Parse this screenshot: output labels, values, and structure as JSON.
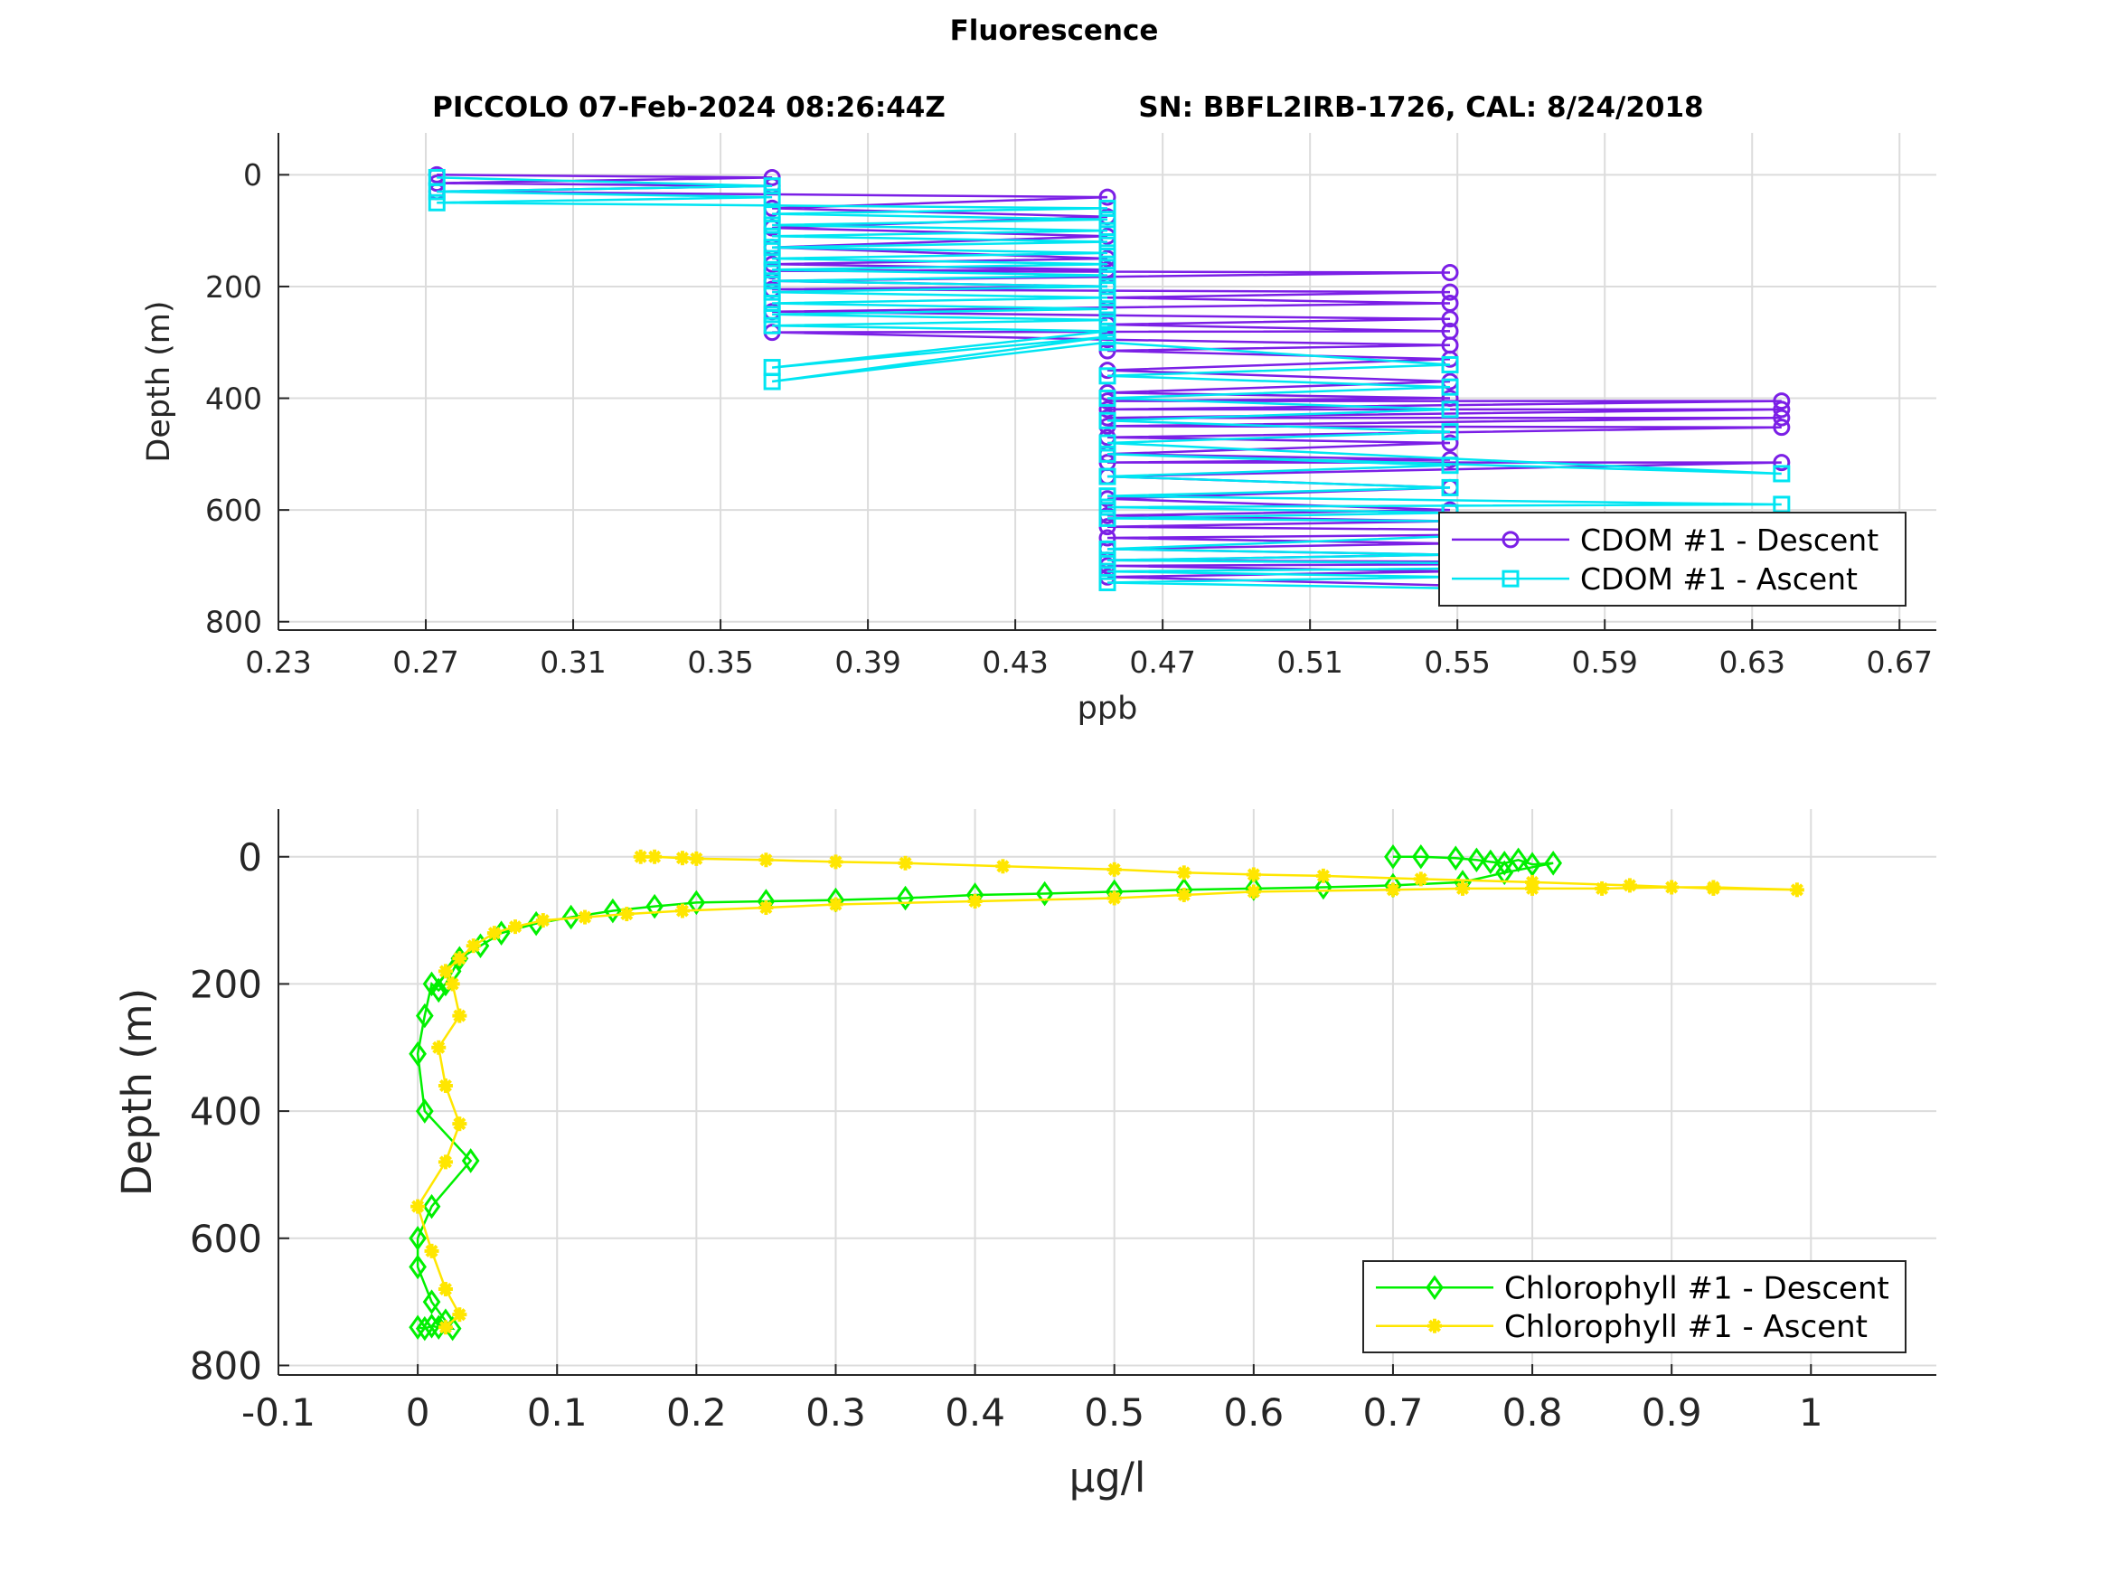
{
  "figure": {
    "title": "Fluorescence",
    "subtitle_left": "PICCOLO 07-Feb-2024 08:26:44Z",
    "subtitle_right": "SN: BBFL2IRB-1726, CAL: 8/24/2018"
  },
  "colors": {
    "cdom_descent": "#7B1FE6",
    "cdom_ascent": "#00E5F2",
    "chl_descent": "#00F000",
    "chl_ascent": "#FFE600",
    "grid": "#dcdcdc",
    "axis": "#262626"
  },
  "chart_data": [
    {
      "type": "line",
      "panel": "top",
      "xlabel": "ppb",
      "ylabel": "Depth (m)",
      "xlim": [
        0.23,
        0.68
      ],
      "ylim": [
        -75,
        815
      ],
      "y_reversed": true,
      "grid": true,
      "legend_position": "bottom-right",
      "xticks": [
        "0.23",
        "0.27",
        "0.31",
        "0.35",
        "0.39",
        "0.43",
        "0.47",
        "0.51",
        "0.55",
        "0.59",
        "0.63",
        "0.67"
      ],
      "yticks": [
        "0",
        "200",
        "400",
        "600",
        "800"
      ],
      "series": [
        {
          "name": "CDOM #1 - Descent",
          "marker": "circle",
          "x": [
            0.273,
            0.364,
            0.273,
            0.364,
            0.273,
            0.455,
            0.364,
            0.455,
            0.364,
            0.455,
            0.364,
            0.455,
            0.364,
            0.455,
            0.364,
            0.548,
            0.364,
            0.455,
            0.364,
            0.548,
            0.455,
            0.548,
            0.364,
            0.548,
            0.455,
            0.548,
            0.364,
            0.455,
            0.548,
            0.455,
            0.548,
            0.455,
            0.548,
            0.455,
            0.548,
            0.455,
            0.638,
            0.455,
            0.638,
            0.455,
            0.638,
            0.455,
            0.638,
            0.455,
            0.548,
            0.455,
            0.548,
            0.455,
            0.638,
            0.455,
            0.548,
            0.455,
            0.548,
            0.455,
            0.548,
            0.455,
            0.638,
            0.455,
            0.548,
            0.455,
            0.548,
            0.455,
            0.638,
            0.455,
            0.548,
            0.455,
            0.548
          ],
          "y": [
            0,
            5,
            15,
            20,
            30,
            40,
            60,
            75,
            95,
            110,
            130,
            150,
            160,
            170,
            172,
            175,
            190,
            200,
            205,
            210,
            220,
            230,
            245,
            258,
            268,
            280,
            282,
            295,
            305,
            315,
            330,
            350,
            370,
            390,
            400,
            405,
            405,
            420,
            420,
            435,
            435,
            450,
            452,
            470,
            480,
            500,
            510,
            515,
            515,
            540,
            560,
            580,
            600,
            610,
            620,
            630,
            640,
            650,
            660,
            670,
            680,
            690,
            695,
            700,
            710,
            720,
            735
          ]
        },
        {
          "name": "CDOM #1 - Ascent",
          "marker": "square",
          "x": [
            0.548,
            0.455,
            0.548,
            0.455,
            0.638,
            0.455,
            0.548,
            0.455,
            0.638,
            0.455,
            0.548,
            0.455,
            0.638,
            0.455,
            0.548,
            0.455,
            0.548,
            0.455,
            0.638,
            0.455,
            0.548,
            0.455,
            0.548,
            0.455,
            0.548,
            0.455,
            0.548,
            0.455,
            0.364,
            0.455,
            0.364,
            0.455,
            0.364,
            0.455,
            0.364,
            0.455,
            0.364,
            0.455,
            0.364,
            0.455,
            0.364,
            0.455,
            0.364,
            0.455,
            0.364,
            0.455,
            0.364,
            0.455,
            0.364,
            0.455,
            0.364,
            0.455,
            0.364,
            0.455,
            0.273,
            0.364,
            0.273,
            0.364,
            0.273
          ],
          "y": [
            740,
            730,
            720,
            710,
            700,
            690,
            680,
            670,
            625,
            615,
            605,
            595,
            590,
            575,
            560,
            540,
            520,
            500,
            535,
            480,
            460,
            440,
            420,
            400,
            380,
            360,
            340,
            300,
            370,
            290,
            345,
            280,
            270,
            260,
            250,
            240,
            230,
            220,
            210,
            200,
            190,
            180,
            170,
            160,
            150,
            140,
            130,
            120,
            110,
            100,
            90,
            80,
            70,
            60,
            50,
            40,
            30,
            20,
            5
          ]
        }
      ]
    },
    {
      "type": "line",
      "panel": "bottom",
      "xlabel": "μg/l",
      "ylabel": "Depth (m)",
      "xlim": [
        -0.1,
        1.09
      ],
      "ylim": [
        -75,
        815
      ],
      "y_reversed": true,
      "grid": true,
      "legend_position": "bottom-right",
      "xticks": [
        "-0.1",
        "0",
        "0.1",
        "0.2",
        "0.3",
        "0.4",
        "0.5",
        "0.6",
        "0.7",
        "0.8",
        "0.9",
        "1"
      ],
      "yticks": [
        "0",
        "200",
        "400",
        "600",
        "800"
      ],
      "series": [
        {
          "name": "Chlorophyll #1 - Descent",
          "marker": "diamond",
          "x": [
            0.7,
            0.72,
            0.745,
            0.76,
            0.77,
            0.78,
            0.79,
            0.8,
            0.815,
            0.78,
            0.75,
            0.7,
            0.65,
            0.6,
            0.55,
            0.5,
            0.45,
            0.4,
            0.35,
            0.3,
            0.25,
            0.2,
            0.17,
            0.14,
            0.11,
            0.085,
            0.06,
            0.045,
            0.03,
            0.025,
            0.02,
            0.015,
            0.01,
            0.005,
            0.0,
            0.005,
            0.038,
            0.01,
            0.0,
            0.0,
            0.01,
            0.02,
            0.025,
            0.015,
            0.01,
            0.005,
            0.0
          ],
          "y": [
            0,
            0,
            2,
            5,
            8,
            10,
            5,
            12,
            10,
            25,
            40,
            45,
            48,
            50,
            52,
            55,
            58,
            60,
            65,
            68,
            70,
            72,
            78,
            85,
            95,
            105,
            120,
            140,
            160,
            180,
            200,
            210,
            200,
            250,
            310,
            400,
            478,
            550,
            600,
            645,
            700,
            730,
            742,
            740,
            738,
            742,
            740
          ]
        },
        {
          "name": "Chlorophyll #1 - Ascent",
          "marker": "asterisk",
          "x": [
            0.02,
            0.03,
            0.02,
            0.01,
            0.0,
            0.02,
            0.03,
            0.02,
            0.015,
            0.03,
            0.025,
            0.02,
            0.03,
            0.04,
            0.055,
            0.07,
            0.09,
            0.12,
            0.15,
            0.19,
            0.25,
            0.3,
            0.4,
            0.5,
            0.55,
            0.6,
            0.7,
            0.75,
            0.8,
            0.85,
            0.9,
            0.93,
            0.99,
            0.93,
            0.87,
            0.8,
            0.72,
            0.65,
            0.6,
            0.55,
            0.5,
            0.42,
            0.35,
            0.3,
            0.25,
            0.2,
            0.19,
            0.17,
            0.16
          ],
          "y": [
            740,
            720,
            680,
            620,
            550,
            480,
            420,
            360,
            300,
            250,
            200,
            180,
            160,
            140,
            120,
            110,
            100,
            95,
            90,
            85,
            80,
            75,
            70,
            65,
            60,
            55,
            52,
            50,
            50,
            50,
            48,
            48,
            52,
            50,
            45,
            40,
            35,
            30,
            28,
            25,
            20,
            15,
            10,
            8,
            5,
            3,
            2,
            0,
            0
          ]
        }
      ]
    }
  ]
}
